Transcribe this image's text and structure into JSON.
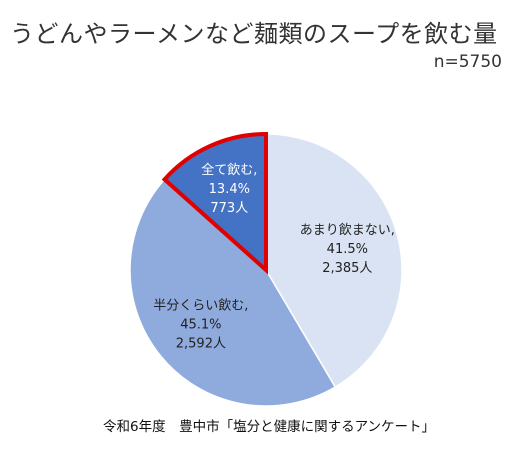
{
  "chart_data": {
    "type": "pie",
    "title": "うどんやラーメンなど麺類のスープを飲む量",
    "subtitle": "n=5750",
    "source": "令和6年度　豊中市「塩分と健康に関するアンケート」",
    "slices": [
      {
        "label": "あまり飲まない,",
        "percent_text": "41.5%",
        "count_text": "2,385人",
        "value": 41.5,
        "color": "#dae3f3",
        "text_color": "#222222"
      },
      {
        "label": "半分くらい飲む,",
        "percent_text": "45.1%",
        "count_text": "2,592人",
        "value": 45.1,
        "color": "#8faadc",
        "text_color": "#222222"
      },
      {
        "label": "全て飲む,",
        "percent_text": "13.4%",
        "count_text": "773人",
        "value": 13.4,
        "color": "#4472c4",
        "text_color": "#ffffff",
        "highlighted": true
      }
    ],
    "highlight_color": "#e00000",
    "start_angle_deg": 0,
    "direction": "clockwise",
    "grid": false,
    "legend": "none"
  }
}
